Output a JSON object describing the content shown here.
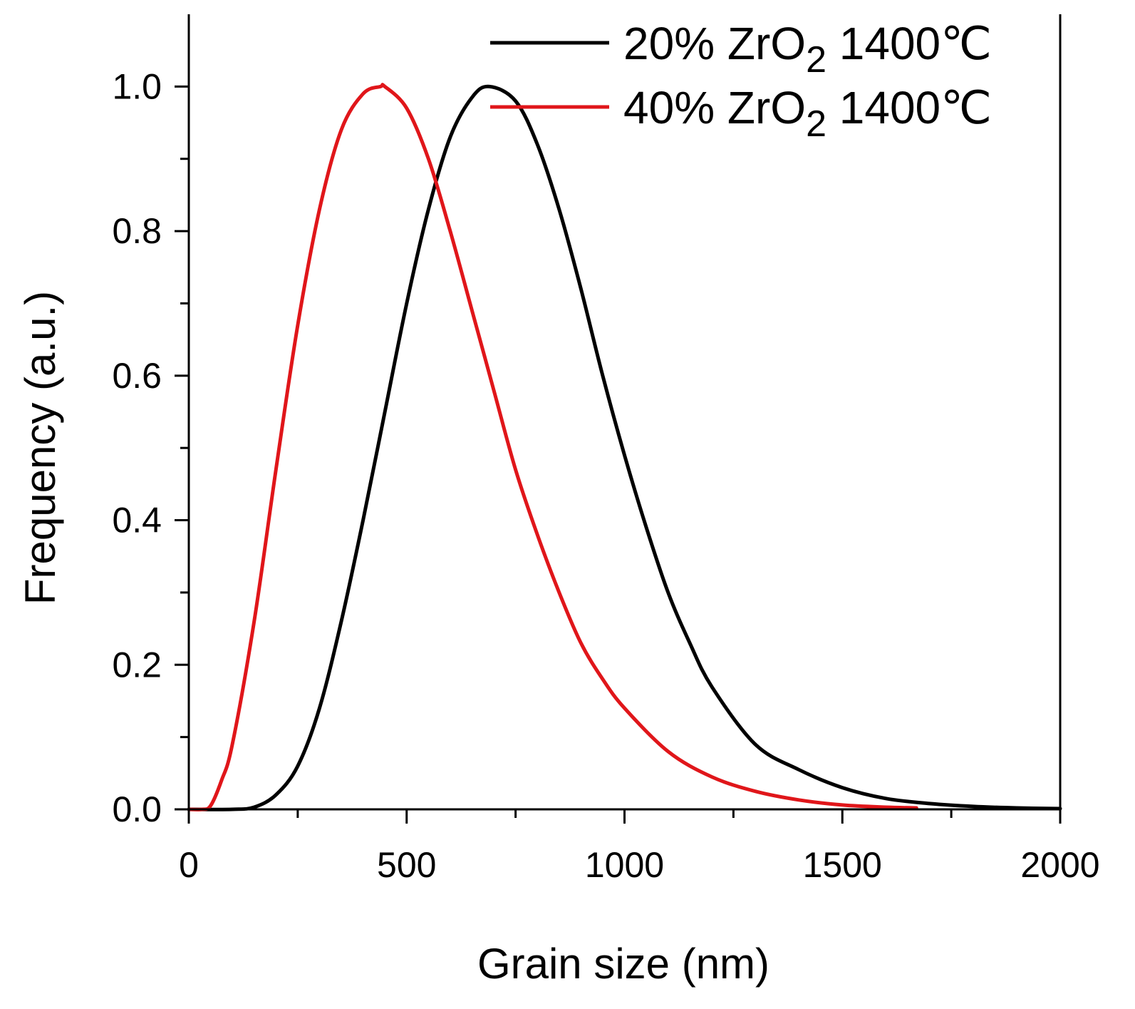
{
  "chart_data": {
    "type": "line",
    "xlabel": "Grain size (nm)",
    "ylabel": "Frequency (a.u.)",
    "xlim": [
      0,
      2000
    ],
    "ylim": [
      0,
      1.1
    ],
    "x_ticks": [
      0,
      500,
      1000,
      1500,
      2000
    ],
    "x_tick_labels": [
      "0",
      "500",
      "1000",
      "1500",
      "2000"
    ],
    "y_ticks": [
      0.0,
      0.2,
      0.4,
      0.6,
      0.8,
      1.0
    ],
    "y_tick_labels": [
      "0.0",
      "0.2",
      "0.4",
      "0.6",
      "0.8",
      "1.0"
    ],
    "grid": false,
    "legend_position": "top-right",
    "series": [
      {
        "name": "20% ZrO2 1400℃",
        "legend_prefix": "20% ZrO",
        "legend_subscript": "2",
        "legend_suffix": " 1400℃",
        "color": "#000000",
        "x": [
          0,
          100,
          150,
          200,
          250,
          300,
          350,
          400,
          450,
          500,
          550,
          600,
          650,
          690,
          750,
          800,
          850,
          900,
          950,
          1000,
          1050,
          1100,
          1150,
          1200,
          1300,
          1400,
          1500,
          1600,
          1700,
          1800,
          1900,
          2000
        ],
        "y": [
          0.0,
          0.0,
          0.003,
          0.02,
          0.06,
          0.14,
          0.26,
          0.4,
          0.55,
          0.7,
          0.83,
          0.93,
          0.985,
          1.0,
          0.98,
          0.92,
          0.83,
          0.72,
          0.6,
          0.49,
          0.39,
          0.3,
          0.23,
          0.17,
          0.09,
          0.055,
          0.03,
          0.015,
          0.008,
          0.004,
          0.002,
          0.001
        ]
      },
      {
        "name": "40% ZrO2 1400℃",
        "legend_prefix": "40% ZrO",
        "legend_subscript": "2",
        "legend_suffix": " 1400℃",
        "color": "#e0161a",
        "x": [
          0,
          30,
          50,
          75,
          100,
          150,
          200,
          250,
          300,
          350,
          400,
          440,
          450,
          500,
          550,
          600,
          650,
          700,
          750,
          800,
          850,
          900,
          950,
          1000,
          1100,
          1200,
          1300,
          1400,
          1500,
          1600,
          1670
        ],
        "y": [
          0.0,
          0.0,
          0.005,
          0.04,
          0.09,
          0.26,
          0.47,
          0.67,
          0.83,
          0.94,
          0.99,
          1.0,
          1.0,
          0.97,
          0.9,
          0.8,
          0.69,
          0.58,
          0.47,
          0.38,
          0.3,
          0.23,
          0.18,
          0.14,
          0.08,
          0.045,
          0.025,
          0.013,
          0.006,
          0.003,
          0.002
        ]
      }
    ]
  }
}
